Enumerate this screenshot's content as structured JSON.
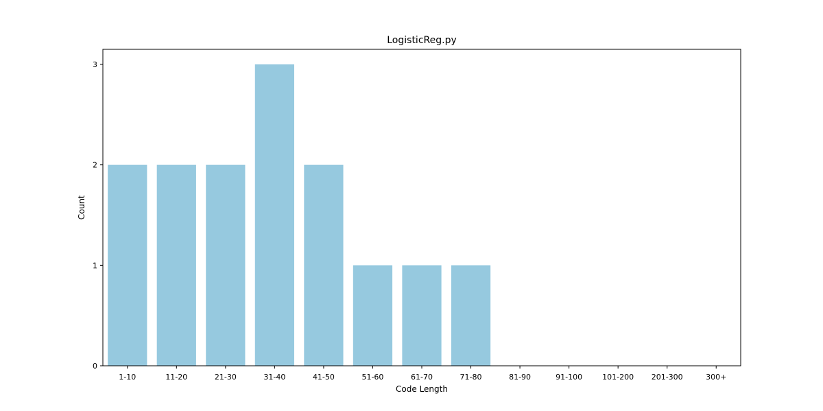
{
  "chart_data": {
    "type": "bar",
    "title": "LogisticReg.py",
    "xlabel": "Code Length",
    "ylabel": "Count",
    "categories": [
      "1-10",
      "11-20",
      "21-30",
      "31-40",
      "41-50",
      "51-60",
      "61-70",
      "71-80",
      "81-90",
      "91-100",
      "101-200",
      "201-300",
      "300+"
    ],
    "values": [
      2,
      2,
      2,
      3,
      2,
      1,
      1,
      1,
      0,
      0,
      0,
      0,
      0
    ],
    "yticks": [
      0,
      1,
      2,
      3
    ],
    "ylim": [
      0,
      3.15
    ],
    "bar_color": "#96c9df",
    "grid": false,
    "legend": "none"
  }
}
